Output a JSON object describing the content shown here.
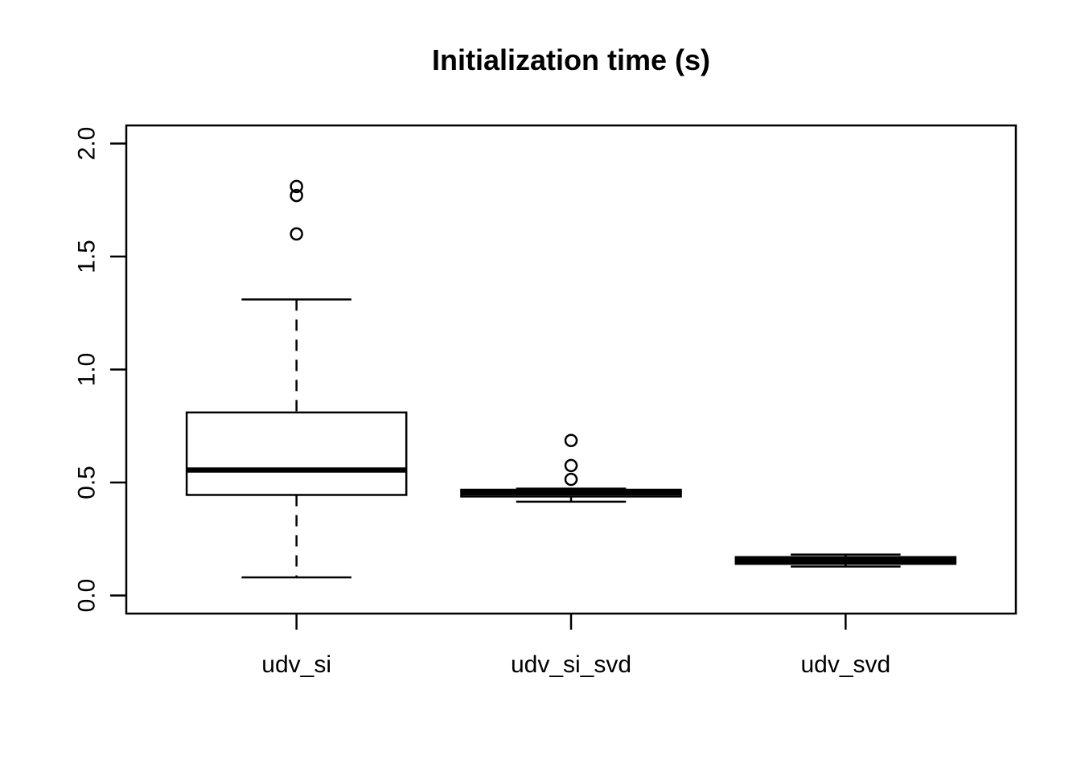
{
  "chart_data": {
    "type": "boxplot",
    "title": "Initialization time (s)",
    "xlabel": "",
    "ylabel": "",
    "categories": [
      "udv_si",
      "udv_si_svd",
      "udv_svd"
    ],
    "series": [
      {
        "name": "udv_si",
        "whisker_low": 0.08,
        "q1": 0.445,
        "median": 0.555,
        "q3": 0.81,
        "whisker_high": 1.31,
        "outliers": [
          1.6,
          1.77,
          1.81
        ]
      },
      {
        "name": "udv_si_svd",
        "whisker_low": 0.415,
        "q1": 0.438,
        "median": 0.454,
        "q3": 0.468,
        "whisker_high": 0.473,
        "outliers": [
          0.514,
          0.575,
          0.686
        ]
      },
      {
        "name": "udv_svd",
        "whisker_low": 0.128,
        "q1": 0.14,
        "median": 0.155,
        "q3": 0.17,
        "whisker_high": 0.181,
        "outliers": []
      }
    ],
    "yticks": [
      0.0,
      0.5,
      1.0,
      1.5,
      2.0
    ],
    "ytick_labels": [
      "0.0",
      "0.5",
      "1.0",
      "1.5",
      "2.0"
    ],
    "ylim": [
      -0.08,
      2.08
    ],
    "xlim": [
      0.38,
      3.62
    ],
    "grid": false,
    "legend": false,
    "colors": {
      "stroke": "#000000",
      "fill": "#ffffff",
      "background": "#ffffff"
    }
  }
}
